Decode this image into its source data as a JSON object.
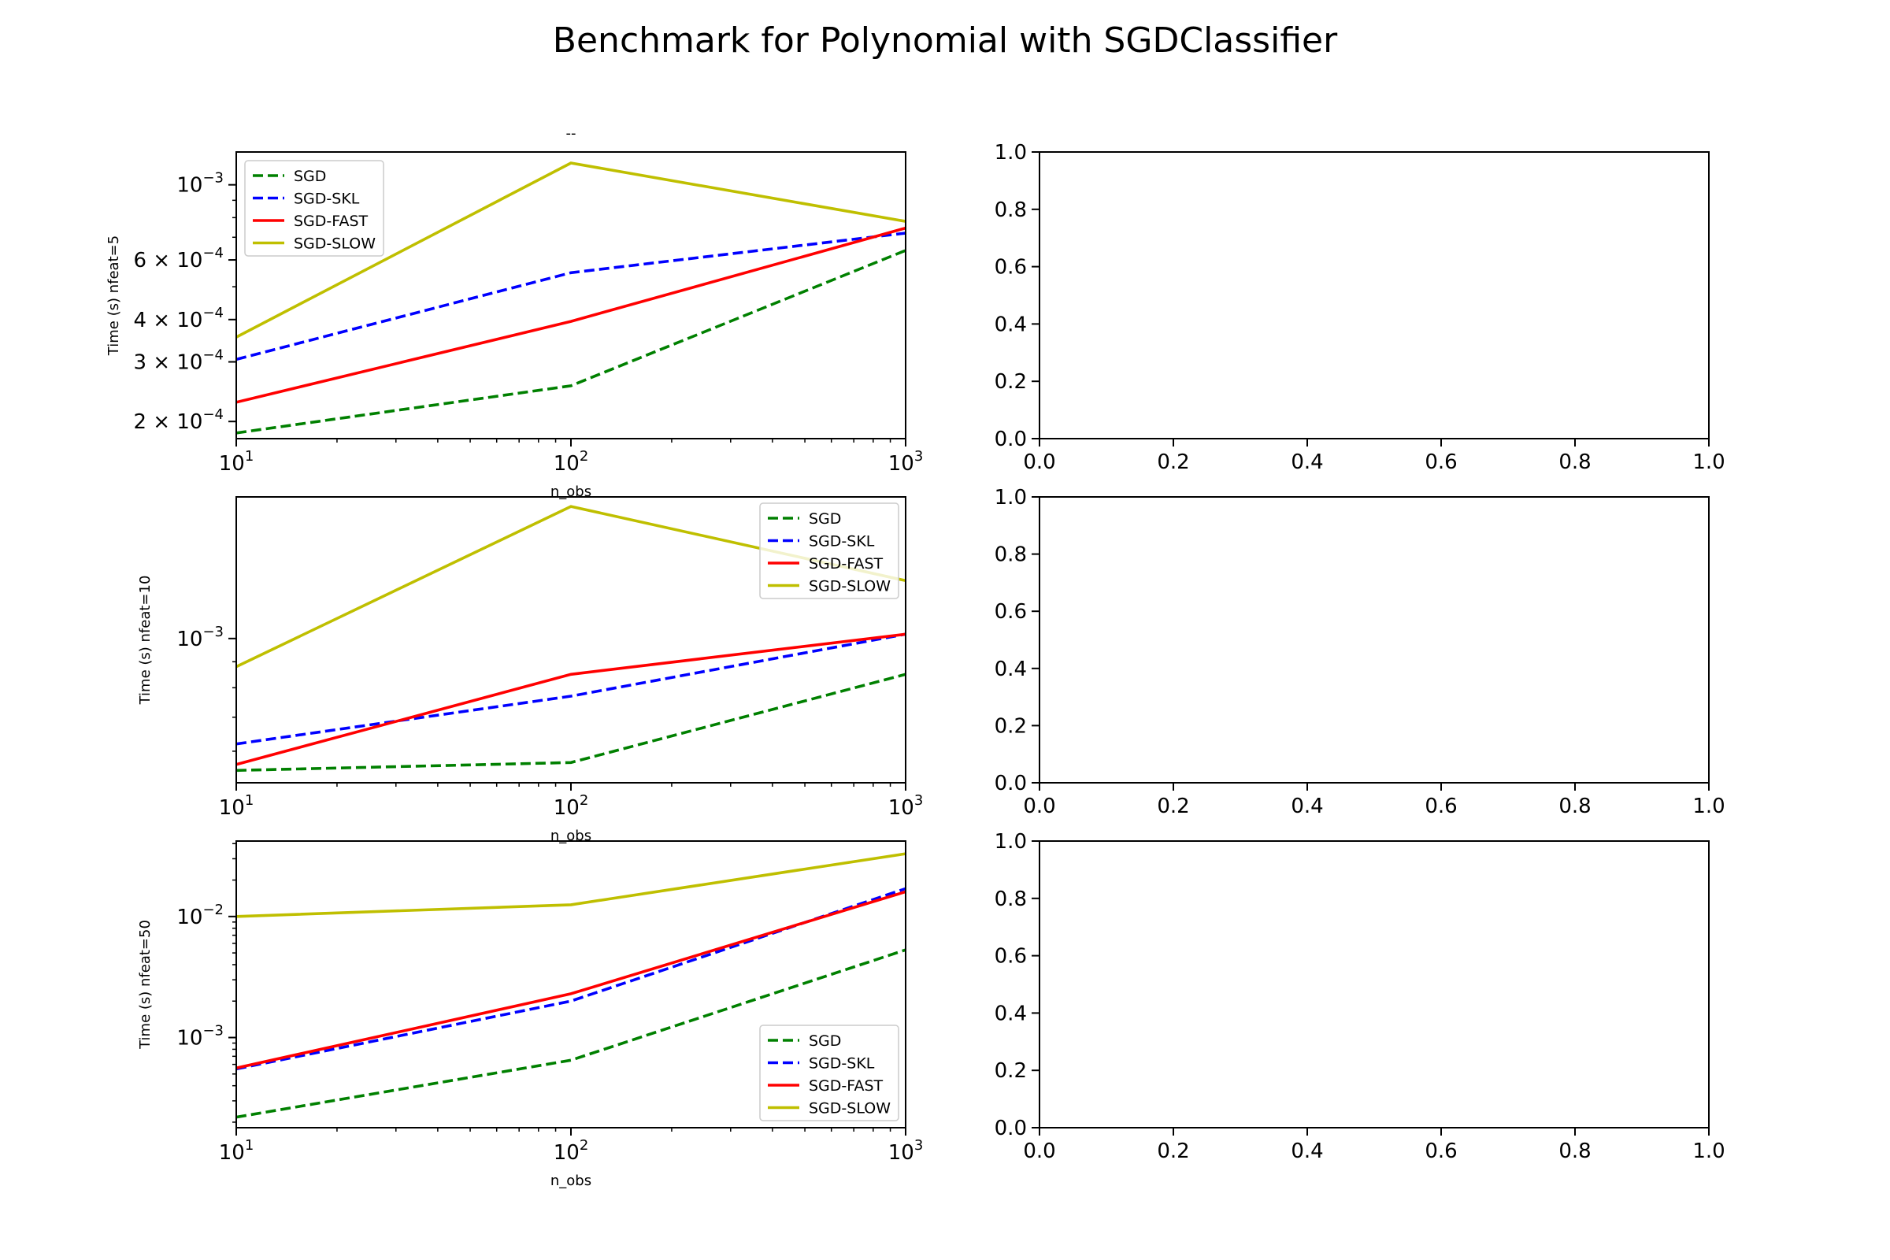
{
  "figure": {
    "title": "Benchmark for Polynomial with SGDClassifier"
  },
  "colors": {
    "SGD": "#008000",
    "SGD-SKL": "#0000ff",
    "SGD-FAST": "#ff0000",
    "SGD-SLOW": "#bfbf00"
  },
  "chart_data": [
    {
      "type": "line",
      "title": "--",
      "xlabel": "n_obs",
      "ylabel": "Time (s) nfeat=5",
      "xscale": "log",
      "yscale": "log",
      "xlim": [
        10,
        1000
      ],
      "ylim": [
        0.000178,
        0.00125
      ],
      "xticks": [
        {
          "v": 10,
          "b": "10",
          "e": "1"
        },
        {
          "v": 100,
          "b": "10",
          "e": "2"
        },
        {
          "v": 1000,
          "b": "10",
          "e": "3"
        }
      ],
      "yticks": [
        {
          "v": 0.0002,
          "b": "2 × 10",
          "e": "−4"
        },
        {
          "v": 0.0003,
          "b": "3 × 10",
          "e": "−4"
        },
        {
          "v": 0.0004,
          "b": "4 × 10",
          "e": "−4"
        },
        {
          "v": 0.0006,
          "b": "6 × 10",
          "e": "−4"
        },
        {
          "v": 0.001,
          "b": "10",
          "e": "−3"
        }
      ],
      "legend_position": "upper left",
      "x": [
        10,
        100,
        1000
      ],
      "series": [
        {
          "name": "SGD",
          "values": [
            0.000185,
            0.000255,
            0.00064
          ]
        },
        {
          "name": "SGD-SKL",
          "values": [
            0.000305,
            0.00055,
            0.00072
          ]
        },
        {
          "name": "SGD-FAST",
          "values": [
            0.000228,
            0.000395,
            0.000745
          ]
        },
        {
          "name": "SGD-SLOW",
          "values": [
            0.000355,
            0.00116,
            0.00078
          ]
        }
      ]
    },
    {
      "type": "line",
      "xlabel": "n_obs",
      "ylabel": "Time (s) nfeat=10",
      "xscale": "log",
      "yscale": "log",
      "xlim": [
        10,
        1000
      ],
      "ylim": [
        0.00052,
        0.0019
      ],
      "xticks": [
        {
          "v": 10,
          "b": "10",
          "e": "1"
        },
        {
          "v": 100,
          "b": "10",
          "e": "2"
        },
        {
          "v": 1000,
          "b": "10",
          "e": "3"
        }
      ],
      "yticks": [
        {
          "v": 0.001,
          "b": "10",
          "e": "−3"
        }
      ],
      "legend_position": "upper right",
      "x": [
        10,
        100,
        1000
      ],
      "series": [
        {
          "name": "SGD",
          "values": [
            0.00055,
            0.00057,
            0.00085
          ]
        },
        {
          "name": "SGD-SKL",
          "values": [
            0.00062,
            0.00077,
            0.00102
          ]
        },
        {
          "name": "SGD-FAST",
          "values": [
            0.000565,
            0.00085,
            0.00102
          ]
        },
        {
          "name": "SGD-SLOW",
          "values": [
            0.00088,
            0.00182,
            0.0013
          ]
        }
      ]
    },
    {
      "type": "line",
      "xlabel": "n_obs",
      "ylabel": "Time (s) nfeat=50",
      "xscale": "log",
      "yscale": "log",
      "xlim": [
        10,
        1000
      ],
      "ylim": [
        0.00018,
        0.042
      ],
      "xticks": [
        {
          "v": 10,
          "b": "10",
          "e": "1"
        },
        {
          "v": 100,
          "b": "10",
          "e": "2"
        },
        {
          "v": 1000,
          "b": "10",
          "e": "3"
        }
      ],
      "yticks": [
        {
          "v": 0.001,
          "b": "10",
          "e": "−3"
        },
        {
          "v": 0.01,
          "b": "10",
          "e": "−2"
        }
      ],
      "legend_position": "lower right",
      "x": [
        10,
        100,
        1000
      ],
      "series": [
        {
          "name": "SGD",
          "values": [
            0.00022,
            0.00065,
            0.0053
          ]
        },
        {
          "name": "SGD-SKL",
          "values": [
            0.00055,
            0.002,
            0.017
          ]
        },
        {
          "name": "SGD-FAST",
          "values": [
            0.00056,
            0.0023,
            0.016
          ]
        },
        {
          "name": "SGD-SLOW",
          "values": [
            0.01,
            0.0125,
            0.033
          ]
        }
      ]
    },
    {
      "type": "line",
      "xlim": [
        0,
        1
      ],
      "ylim": [
        0,
        1
      ],
      "xticks": [
        "0.0",
        "0.2",
        "0.4",
        "0.6",
        "0.8",
        "1.0"
      ],
      "yticks": [
        "0.0",
        "0.2",
        "0.4",
        "0.6",
        "0.8",
        "1.0"
      ],
      "series": []
    },
    {
      "type": "line",
      "xlim": [
        0,
        1
      ],
      "ylim": [
        0,
        1
      ],
      "xticks": [
        "0.0",
        "0.2",
        "0.4",
        "0.6",
        "0.8",
        "1.0"
      ],
      "yticks": [
        "0.0",
        "0.2",
        "0.4",
        "0.6",
        "0.8",
        "1.0"
      ],
      "series": []
    },
    {
      "type": "line",
      "xlim": [
        0,
        1
      ],
      "ylim": [
        0,
        1
      ],
      "xticks": [
        "0.0",
        "0.2",
        "0.4",
        "0.6",
        "0.8",
        "1.0"
      ],
      "yticks": [
        "0.0",
        "0.2",
        "0.4",
        "0.6",
        "0.8",
        "1.0"
      ],
      "series": []
    }
  ]
}
